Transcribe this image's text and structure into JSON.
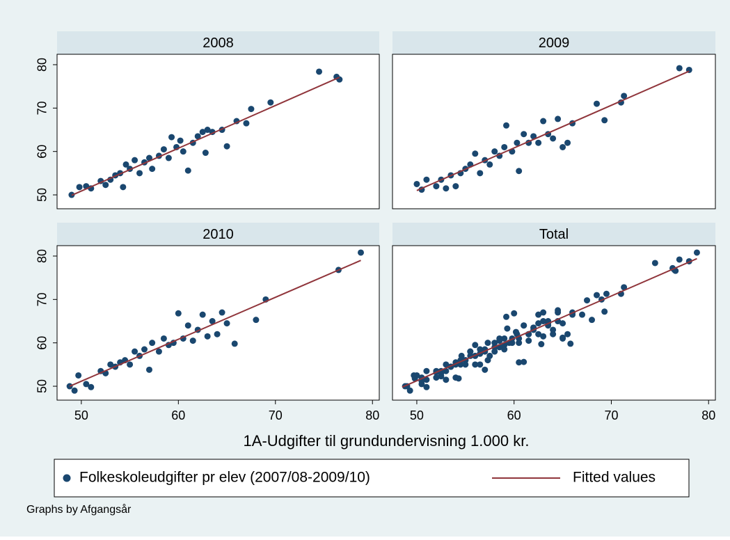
{
  "chart_data": [
    {
      "type": "scatter",
      "title": "2008",
      "xlim": [
        47.5,
        80.7
      ],
      "ylim": [
        46.8,
        82.4
      ],
      "yticks": [
        50,
        60,
        70,
        80
      ],
      "x": [
        49,
        49.8,
        50.5,
        51,
        52,
        52.5,
        53,
        53.5,
        54,
        54.3,
        54.6,
        55,
        55.5,
        56,
        56.5,
        57,
        57.3,
        58,
        58.5,
        59,
        59.3,
        59.8,
        60.2,
        60.5,
        61,
        61.5,
        62,
        62.5,
        62.8,
        63,
        63.5,
        64.5,
        65,
        66,
        67,
        67.5,
        69.5,
        74.5,
        76.3,
        76.6
      ],
      "values": [
        50,
        51.8,
        52,
        51.5,
        53.2,
        52.3,
        53.5,
        54.5,
        55,
        51.8,
        57,
        56,
        58,
        55,
        57.5,
        58.5,
        56,
        59,
        60.5,
        58.5,
        63.3,
        61,
        62.5,
        60,
        55.6,
        62,
        63.5,
        64.5,
        59.7,
        65,
        64.5,
        65,
        61.2,
        67,
        66.5,
        69.8,
        71.3,
        78.4,
        77.2,
        76.6
      ],
      "fit": {
        "x": [
          49,
          76.6
        ],
        "values": [
          49.9,
          77.1
        ]
      }
    },
    {
      "type": "scatter",
      "title": "2009",
      "xlim": [
        47.5,
        80.7
      ],
      "ylim": [
        46.8,
        82.4
      ],
      "x": [
        50,
        50.5,
        51,
        52,
        52.5,
        53,
        53.5,
        54,
        54.5,
        55,
        55.5,
        56,
        56.5,
        57,
        57.5,
        58,
        58.5,
        59,
        59.2,
        59.8,
        60.3,
        60.5,
        61,
        61.5,
        62,
        62.5,
        63,
        63.5,
        64,
        64.5,
        65,
        65.5,
        66,
        68.5,
        69.3,
        71,
        71.3,
        77,
        78
      ],
      "values": [
        52.5,
        51.2,
        53.5,
        52,
        53.5,
        51.5,
        54.5,
        52,
        55,
        56,
        57,
        59.5,
        55,
        58,
        57,
        60,
        59,
        61,
        66,
        60,
        62,
        55.5,
        64,
        62,
        63.5,
        62,
        67,
        64,
        63,
        67.5,
        61,
        62,
        66.5,
        71,
        67.2,
        71.3,
        72.8,
        79.2,
        78.8
      ],
      "fit": {
        "x": [
          50,
          78
        ],
        "values": [
          51,
          78.5
        ]
      }
    },
    {
      "type": "scatter",
      "title": "2010",
      "xlim": [
        47.5,
        80.7
      ],
      "ylim": [
        46.8,
        82.4
      ],
      "xticks": [
        50,
        60,
        70,
        80
      ],
      "yticks": [
        50,
        60,
        70,
        80
      ],
      "x": [
        48.8,
        49.3,
        49.7,
        50.5,
        51,
        52,
        52.5,
        53,
        53.5,
        54,
        54.5,
        55,
        55.5,
        56,
        56.5,
        57,
        57.3,
        58,
        58.5,
        59,
        59.5,
        60,
        60.5,
        61,
        61.5,
        62,
        62.5,
        63,
        63.5,
        64,
        64.5,
        65,
        65.8,
        68,
        69,
        76.5,
        78.8
      ],
      "values": [
        50,
        49,
        52.5,
        50.5,
        49.8,
        53.5,
        53,
        55,
        54.5,
        55.5,
        56,
        55,
        58,
        57,
        58.5,
        53.8,
        60,
        58,
        61,
        59.5,
        60,
        66.8,
        61,
        64,
        60.5,
        63,
        66.5,
        61.5,
        65,
        62,
        67,
        64.5,
        59.8,
        65.3,
        70,
        76.8,
        80.8
      ],
      "fit": {
        "x": [
          48.8,
          78.8
        ],
        "values": [
          50,
          79
        ]
      }
    },
    {
      "type": "scatter",
      "title": "Total",
      "xlim": [
        47.5,
        80.7
      ],
      "ylim": [
        46.8,
        82.4
      ],
      "xticks": [
        50,
        60,
        70,
        80
      ],
      "x": [
        49,
        49.8,
        50.5,
        51,
        52,
        52.5,
        53,
        53.5,
        54,
        54.3,
        54.6,
        55,
        55.5,
        56,
        56.5,
        57,
        57.3,
        58,
        58.5,
        59,
        59.3,
        59.8,
        60.2,
        60.5,
        61,
        61.5,
        62,
        62.5,
        62.8,
        63,
        63.5,
        64.5,
        65,
        66,
        67,
        67.5,
        69.5,
        74.5,
        76.3,
        76.6,
        50,
        50.5,
        51,
        52,
        52.5,
        53,
        53.5,
        54,
        54.5,
        55,
        55.5,
        56,
        56.5,
        57,
        57.5,
        58,
        58.5,
        59,
        59.2,
        59.8,
        60.3,
        60.5,
        61,
        61.5,
        62,
        62.5,
        63,
        63.5,
        64,
        64.5,
        65,
        65.5,
        66,
        68.5,
        69.3,
        71,
        71.3,
        77,
        78,
        48.8,
        49.3,
        49.7,
        50.5,
        51,
        52,
        52.5,
        53,
        53.5,
        54,
        54.5,
        55,
        55.5,
        56,
        56.5,
        57,
        57.3,
        58,
        58.5,
        59,
        59.5,
        60,
        60.5,
        61,
        61.5,
        62,
        62.5,
        63,
        63.5,
        64,
        64.5,
        65,
        65.8,
        68,
        69,
        76.5,
        78.8
      ],
      "values": [
        50,
        51.8,
        52,
        51.5,
        53.2,
        52.3,
        53.5,
        54.5,
        55,
        51.8,
        57,
        56,
        58,
        55,
        57.5,
        58.5,
        56,
        59,
        60.5,
        58.5,
        63.3,
        61,
        62.5,
        60,
        55.6,
        62,
        63.5,
        64.5,
        59.7,
        65,
        64.5,
        65,
        61.2,
        67,
        66.5,
        69.8,
        71.3,
        78.4,
        77.2,
        76.6,
        52.5,
        51.2,
        53.5,
        52,
        53.5,
        51.5,
        54.5,
        52,
        55,
        56,
        57,
        59.5,
        55,
        58,
        57,
        60,
        59,
        61,
        66,
        60,
        62,
        55.5,
        64,
        62,
        63.5,
        62,
        67,
        64,
        63,
        67.5,
        61,
        62,
        66.5,
        71,
        67.2,
        71.3,
        72.8,
        79.2,
        78.8,
        50,
        49,
        52.5,
        50.5,
        49.8,
        53.5,
        53,
        55,
        54.5,
        55.5,
        56,
        55,
        58,
        57,
        58.5,
        53.8,
        60,
        58,
        61,
        59.5,
        60,
        66.8,
        61,
        64,
        60.5,
        63,
        66.5,
        61.5,
        65,
        62,
        67,
        64.5,
        59.8,
        65.3,
        70,
        76.8,
        80.8
      ],
      "fit": {
        "x": [
          48.5,
          78.8
        ],
        "values": [
          49.8,
          79.4
        ]
      }
    }
  ],
  "xlabel": "1A-Udgifter til grundundervisning 1.000 kr.",
  "legend": [
    {
      "name": "Folkeskoleudgifter pr elev (2007/08-2009/10)",
      "color": "#1a476f"
    },
    {
      "name": "Fitted values",
      "color": "#90353b"
    }
  ],
  "note": "Graphs by Afgangsår"
}
